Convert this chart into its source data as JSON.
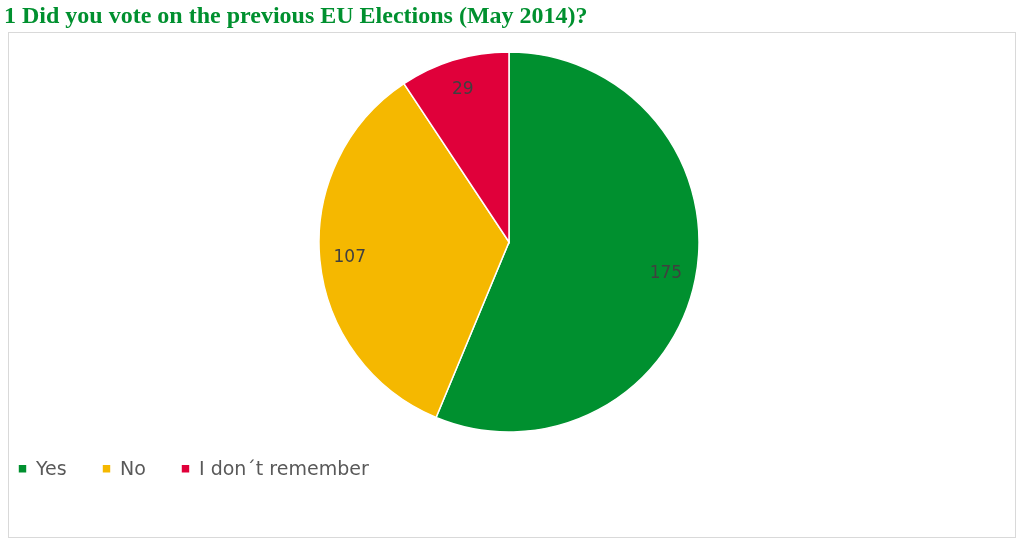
{
  "chart_data": {
    "type": "pie",
    "title": "1 Did you vote on the previous EU Elections (May 2014)?",
    "categories": [
      "Yes",
      "No",
      "I don´t remember"
    ],
    "values": [
      175,
      107,
      29
    ],
    "colors": [
      "#00902f",
      "#f5b800",
      "#e0003a"
    ],
    "data_labels": true,
    "legend": "bottom"
  }
}
